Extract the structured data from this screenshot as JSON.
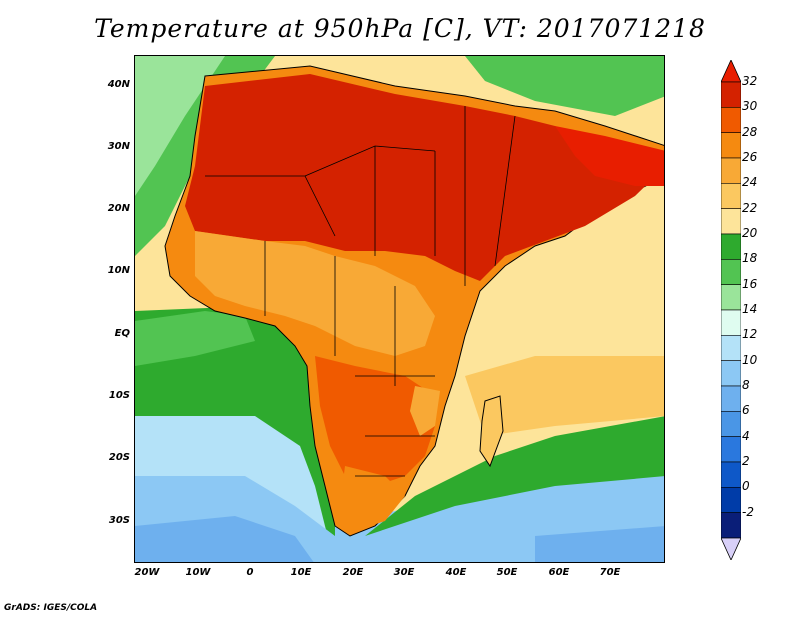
{
  "title": "Temperature at 950hPa [C], VT: 2017071218",
  "credit": "GrADS: IGES/COLA",
  "map": {
    "lat_labels": [
      "40N",
      "30N",
      "20N",
      "10N",
      "EQ",
      "10S",
      "20S",
      "30S"
    ],
    "lon_labels": [
      "20W",
      "10W",
      "0",
      "10E",
      "20E",
      "30E",
      "40E",
      "50E",
      "60E",
      "70E"
    ],
    "lat_range": [
      -37,
      45
    ],
    "lon_range": [
      -23,
      80
    ]
  },
  "colorbar": {
    "labels": [
      "32",
      "30",
      "28",
      "26",
      "24",
      "22",
      "20",
      "18",
      "16",
      "14",
      "12",
      "10",
      "8",
      "6",
      "4",
      "2",
      "0",
      "-2"
    ],
    "colors": [
      "#e81e00",
      "#d42200",
      "#f05a00",
      "#f58a10",
      "#f8a936",
      "#fbc860",
      "#fde49a",
      "#2eaa2e",
      "#52c452",
      "#9ae49a",
      "#dffcf0",
      "#b4e2f8",
      "#8cc8f4",
      "#6eb0ee",
      "#4a96e6",
      "#2a78de",
      "#0e58c8",
      "#003ca8",
      "#0a1e78",
      "#d8d0f8"
    ]
  },
  "icons": {
    "upper_arrow": "triangle-up",
    "lower_arrow": "triangle-down"
  }
}
